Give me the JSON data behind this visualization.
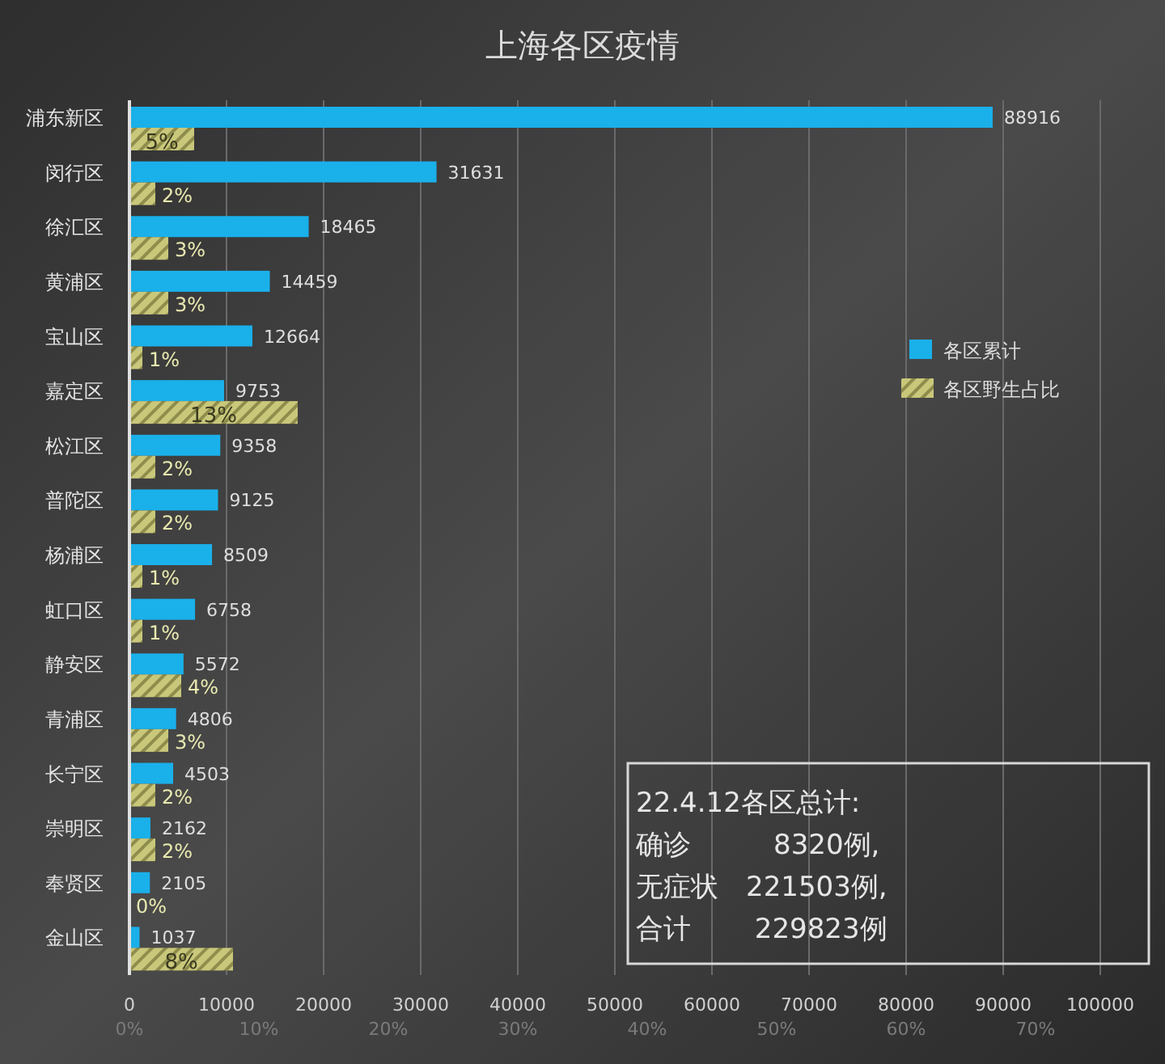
{
  "chart_data": {
    "type": "bar",
    "orientation": "horizontal",
    "title": "上海各区疫情",
    "categories": [
      "浦东新区",
      "闵行区",
      "徐汇区",
      "黄浦区",
      "宝山区",
      "嘉定区",
      "松江区",
      "普陀区",
      "杨浦区",
      "虹口区",
      "静安区",
      "青浦区",
      "长宁区",
      "崇明区",
      "奉贤区",
      "金山区"
    ],
    "series": [
      {
        "name": "各区累计",
        "color": "#1ab0ea",
        "values": [
          88916,
          31631,
          18465,
          14459,
          12664,
          9753,
          9358,
          9125,
          8509,
          6758,
          5572,
          4806,
          4503,
          2162,
          2105,
          1037
        ],
        "value_labels": [
          "88916",
          "31631",
          "18465",
          "14459",
          "12664",
          "9753",
          "9358",
          "9125",
          "8509",
          "6758",
          "5572",
          "4806",
          "4503",
          "2162",
          "2105",
          "1037"
        ]
      },
      {
        "name": "各区野生占比",
        "color": "#c9c77a",
        "axis": "x2",
        "values": [
          5,
          2,
          3,
          3,
          1,
          13,
          2,
          2,
          1,
          1,
          4,
          3,
          2,
          2,
          0,
          8
        ],
        "value_labels": [
          "5%",
          "2%",
          "3%",
          "3%",
          "1%",
          "13%",
          "2%",
          "2%",
          "1%",
          "1%",
          "4%",
          "3%",
          "2%",
          "2%",
          "0%",
          "8%"
        ]
      }
    ],
    "xlim": [
      0,
      100000
    ],
    "xticks": [
      0,
      10000,
      20000,
      30000,
      40000,
      50000,
      60000,
      70000,
      80000,
      90000,
      100000
    ],
    "x2lim": [
      0,
      75
    ],
    "x2ticks": [
      {
        "value": 0,
        "label": "0%"
      },
      {
        "value": 10,
        "label": "10%"
      },
      {
        "value": 20,
        "label": "20%"
      },
      {
        "value": 30,
        "label": "30%"
      },
      {
        "value": 40,
        "label": "40%"
      },
      {
        "value": 50,
        "label": "50%"
      },
      {
        "value": 60,
        "label": "60%"
      },
      {
        "value": 70,
        "label": "70%"
      }
    ],
    "grid": "x",
    "legend": "right",
    "annotations": [
      "22.4.12各区总计:",
      "确诊　　　8320例,",
      "无症状　221503例,",
      "合计　　 229823例"
    ]
  }
}
